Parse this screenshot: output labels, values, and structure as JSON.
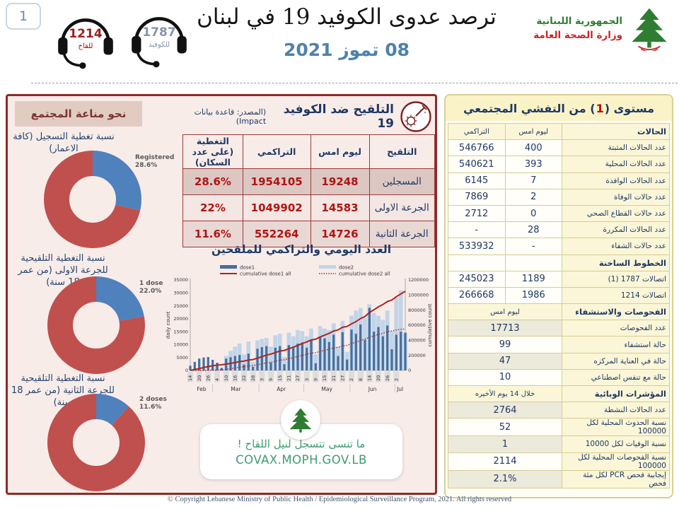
{
  "header": {
    "page_number": "1",
    "hotline_vaccine": {
      "number": "1214",
      "label": "للقاح"
    },
    "hotline_covid": {
      "number": "1787",
      "label": "للكوفيد"
    },
    "title": "ترصد عدوى الكوفيد 19 في لبنان",
    "date": "08 تموز 2021",
    "ministry": {
      "line1": "الجمهورية اللبنانية",
      "line2": "وزارة الصحة العامة"
    }
  },
  "immunity": {
    "title": "نحو مناعة المجتمع",
    "colors": {
      "slice": "#4f81bd",
      "rest": "#c0504d"
    },
    "donuts": [
      {
        "label": "نسبة تغطية التسجيل (كافة الاعمار)",
        "callout": "Registered",
        "pct": 28.6,
        "pct_label": "28.6%"
      },
      {
        "label": "نسبة التغطية التلقيحية للجرعة الاولى (من عمر 18 سنة)",
        "callout": "1 dose",
        "pct": 22.0,
        "pct_label": "22.0%"
      },
      {
        "label": "نسبة التغطية التلقيحية للجرعة الثانية (من عمر 18 سنة)",
        "callout": "2 doses",
        "pct": 11.6,
        "pct_label": "11.6%"
      }
    ]
  },
  "vaccination": {
    "title": "التلقيح ضد الكوفيد 19",
    "source": "(المصدر: قاعدة بيانات Impact)",
    "columns": {
      "c0": "التلقيح",
      "c1": "ليوم امس",
      "c2": "التراكمي",
      "c3": "التغطية (على عدد السكان)"
    },
    "rows": [
      {
        "label": "المسجلين",
        "yesterday": "19248",
        "cumulative": "1954105",
        "coverage": "28.6%"
      },
      {
        "label": "الجرعة الاولى",
        "yesterday": "14583",
        "cumulative": "1049902",
        "coverage": "22%"
      },
      {
        "label": "الجرعة الثانية",
        "yesterday": "14726",
        "cumulative": "552264",
        "coverage": "11.6%"
      }
    ]
  },
  "chart_data": {
    "type": "bar",
    "title": "العدد اليومي والتراكمي للملقحين",
    "left_axis": {
      "label": "daily count",
      "max": 35000,
      "step": 5000
    },
    "right_axis": {
      "label": "cumulative count",
      "max": 1200000,
      "step": 200000
    },
    "x_tick_labels": [
      "14",
      "20",
      "26",
      "4",
      "10",
      "16",
      "22",
      "28",
      "3",
      "9",
      "15",
      "21",
      "27",
      "3",
      "9",
      "15",
      "21",
      "27",
      "2",
      "8",
      "14",
      "20",
      "26",
      "2"
    ],
    "months": [
      "Feb",
      "Mar",
      "Apr",
      "May",
      "Jun",
      "Jul"
    ],
    "month_boundaries_days": [
      15,
      46,
      76,
      107,
      137
    ],
    "total_days": 145,
    "sample_interval_days": 3,
    "series": [
      {
        "name": "dose1",
        "type": "bar",
        "color": "#44709e",
        "values": [
          1800,
          3300,
          4600,
          5000,
          5200,
          4100,
          3000,
          1000,
          4600,
          5100,
          5600,
          6000,
          2300,
          6500,
          1400,
          8400,
          9000,
          9400,
          3000,
          8800,
          9400,
          2400,
          9800,
          9200,
          10400,
          10800,
          8800,
          11600,
          2800,
          12800,
          12400,
          11000,
          13800,
          5600,
          14800,
          4200,
          15800,
          14200,
          17800,
          11800,
          24200,
          15000,
          16800,
          13200,
          17400,
          8200,
          13800,
          15000,
          14583
        ]
      },
      {
        "name": "dose2",
        "type": "bar",
        "color": "#c2d4e8",
        "values": [
          0,
          0,
          0,
          0,
          200,
          800,
          1600,
          600,
          5600,
          7600,
          9200,
          10400,
          6200,
          11200,
          3200,
          11600,
          12200,
          12600,
          9200,
          13600,
          14200,
          5200,
          14600,
          13200,
          15600,
          15200,
          13200,
          16200,
          6200,
          17200,
          16200,
          15600,
          18200,
          9200,
          19200,
          7200,
          21200,
          23200,
          24200,
          20200,
          25600,
          22200,
          21200,
          19600,
          23200,
          15200,
          28200,
          31000,
          14726
        ]
      },
      {
        "name": "cumulative dose1 all",
        "type": "line",
        "style": "solid",
        "color": "#ae2321",
        "axis": "right",
        "values": [
          2000,
          12000,
          25000,
          38000,
          52000,
          62000,
          70000,
          75000,
          84000,
          94000,
          105000,
          117000,
          124000,
          138000,
          144000,
          163000,
          183000,
          203000,
          217000,
          237000,
          257000,
          266000,
          288000,
          308000,
          332000,
          358000,
          378000,
          404000,
          414000,
          444000,
          468000,
          492000,
          522000,
          538000,
          572000,
          584000,
          618000,
          648000,
          688000,
          714000,
          768000,
          804000,
          844000,
          874000,
          914000,
          934000,
          978000,
          1014000,
          1049902
        ]
      },
      {
        "name": "cumulative dose2 all",
        "type": "line",
        "style": "dotted",
        "color": "#ae2321",
        "axis": "right",
        "values": [
          0,
          0,
          0,
          0,
          500,
          2000,
          5000,
          8000,
          15000,
          23000,
          32000,
          42000,
          49000,
          59000,
          64000,
          76000,
          88000,
          100000,
          109000,
          122000,
          136000,
          142000,
          157000,
          170000,
          186000,
          200000,
          213000,
          229000,
          236000,
          252000,
          267000,
          281000,
          298000,
          307000,
          326000,
          333000,
          354000,
          375000,
          397000,
          415000,
          439000,
          459000,
          477000,
          493000,
          514000,
          524000,
          536000,
          545000,
          552264
        ]
      }
    ]
  },
  "covax": {
    "line1": "ما تنسى تتسجل لنيل اللقاح !",
    "line2": "COVAX.MOPH.GOV.LB"
  },
  "outbreak": {
    "title_pre": "مستوى (",
    "level": "1",
    "title_post": ") من التفشي المجتمعي",
    "rows": [
      {
        "type": "head3",
        "label": "الحالات",
        "c1": "ليوم امس",
        "c2": "التراكمي"
      },
      {
        "type": "data3",
        "label": "عدد الحالات المثبتة",
        "c1": "400",
        "c2": "546766"
      },
      {
        "type": "data3",
        "label": "عدد الحالات المحلية",
        "c1": "393",
        "c2": "540621"
      },
      {
        "type": "data3",
        "label": "عدد الحالات الوافدة",
        "c1": "7",
        "c2": "6145"
      },
      {
        "type": "data3",
        "label": "عدد حالات الوفاة",
        "c1": "2",
        "c2": "7869"
      },
      {
        "type": "data3",
        "label": "عدد حالات القطاع الصحي",
        "c1": "0",
        "c2": "2712"
      },
      {
        "type": "data3",
        "label": "عدد الحالات المكررة",
        "c1": "28",
        "c2": "-"
      },
      {
        "type": "data3",
        "label": "عدد حالات الشفاء",
        "c1": "-",
        "c2": "533932"
      },
      {
        "type": "sect",
        "label": "الخطوط الساخنة"
      },
      {
        "type": "data3",
        "label": "اتصالات 1787 (1)",
        "c1": "1189",
        "c2": "245023"
      },
      {
        "type": "data3",
        "label": "اتصالات 1214",
        "c1": "1986",
        "c2": "266668"
      },
      {
        "type": "head2",
        "label": "الفحوصات والاستشفاء",
        "c1": "ليوم امس"
      },
      {
        "type": "data2",
        "label": "عدد الفحوصات",
        "c1": "17713"
      },
      {
        "type": "data2",
        "label": "حالة استشفاء",
        "c1": "99"
      },
      {
        "type": "data2",
        "label": "حالة في العناية المركزه",
        "c1": "47"
      },
      {
        "type": "data2",
        "label": "حالة مع تنفس اصطناعي",
        "c1": "10"
      },
      {
        "type": "head2",
        "label": "المؤشرات الوبائية",
        "c1": "خلال 14 يوم الأخيره"
      },
      {
        "type": "data2",
        "label": "عدد الحالات النشطة",
        "c1": "2764"
      },
      {
        "type": "data2",
        "label": "نسبة الحدوث المحلية لكل 100000",
        "c1": "52"
      },
      {
        "type": "data2",
        "label": "نسبة الوفيات لكل 10000",
        "c1": "1"
      },
      {
        "type": "data2",
        "label": "نسبة الفحوصات  المحلية لكل 100000",
        "c1": "2114"
      },
      {
        "type": "data2",
        "label": "إيجابية فحص PCR لكل مئة فحص",
        "c1": "2.1%"
      }
    ]
  },
  "footer": "© Copyright Lebanese Ministry of Public Health / Epidemiological Surveillance Program, 2021. All rights reserved"
}
